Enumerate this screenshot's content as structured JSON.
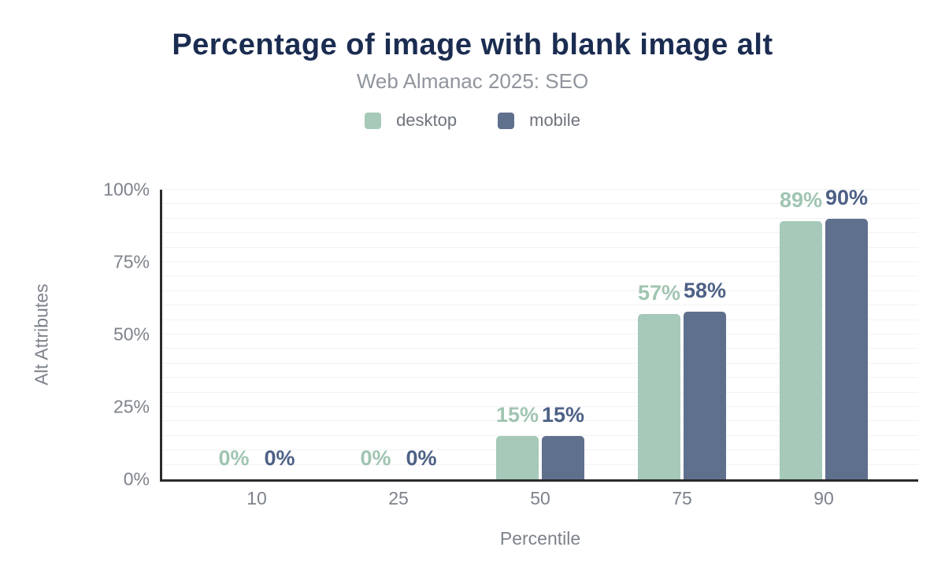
{
  "chart_data": {
    "type": "bar",
    "title": "Percentage of image with blank image alt",
    "subtitle": "Web Almanac 2025: SEO",
    "categories": [
      "10",
      "25",
      "50",
      "75",
      "90"
    ],
    "series": [
      {
        "name": "desktop",
        "values": [
          0,
          0,
          15,
          57,
          89
        ],
        "data_labels": [
          "0%",
          "0%",
          "15%",
          "57%",
          "89%"
        ],
        "color": "#a6c9b9",
        "label_color": "#a0c5b1"
      },
      {
        "name": "mobile",
        "values": [
          0,
          0,
          15,
          58,
          90
        ],
        "data_labels": [
          "0%",
          "0%",
          "15%",
          "58%",
          "90%"
        ],
        "color": "#5f708d",
        "label_color": "#4d6185"
      }
    ],
    "xlabel": "Percentile",
    "ylabel": "Alt Attributes",
    "ylim": [
      0,
      100
    ],
    "yticks": [
      0,
      25,
      50,
      75,
      100
    ],
    "ytick_labels": [
      "0%",
      "25%",
      "50%",
      "75%",
      "100%"
    ],
    "grid": {
      "horizontal": true,
      "minor_step_pct": 5,
      "vertical": false
    },
    "legend_position": "top"
  },
  "colors": {
    "background": "#ffffff",
    "title": "#1b2c51",
    "subtitle": "#90959d",
    "axis_text": "#7d828b",
    "legend_text": "#6f747d",
    "axis_line": "#2b2b2b",
    "gridline": "#f2f2f2"
  }
}
